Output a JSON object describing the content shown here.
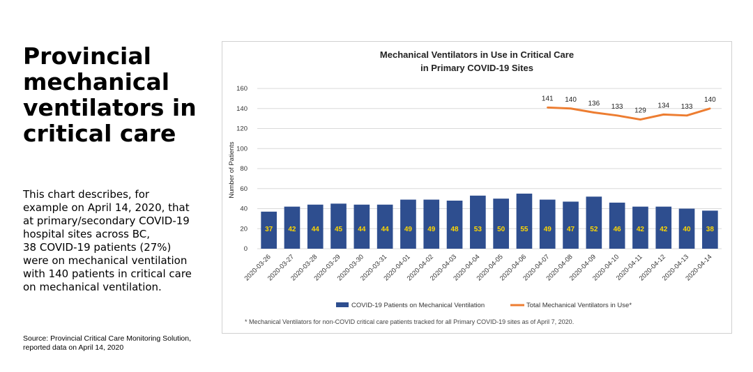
{
  "slide": {
    "title_lines": [
      "Provincial",
      "mechanical",
      "ventilators in",
      "critical care"
    ],
    "description_lines": [
      "This chart describes, for",
      "example on April 14, 2020, that",
      "at primary/secondary COVID-19",
      "hospital sites across BC,",
      "38 COVID-19 patients (27%)",
      "were on mechanical ventilation",
      "with 140 patients in critical care",
      "on mechanical ventilation."
    ],
    "source_lines": [
      "Source: Provincial Critical Care Monitoring Solution,",
      "reported data on April 14, 2020"
    ]
  },
  "colors": {
    "bar": "#2e4e8f",
    "line": "#ed7d31",
    "bar_label": "#ffd700",
    "grid": "#d9d9d9"
  },
  "chart_data": {
    "type": "bar",
    "title_lines": [
      "Mechanical Ventilators in Use in Critical Care",
      "in Primary COVID-19 Sites"
    ],
    "ylabel": "Number of Patients",
    "xlabel": "",
    "ylim": [
      0,
      160
    ],
    "yticks": [
      0,
      20,
      40,
      60,
      80,
      100,
      120,
      140,
      160
    ],
    "grid": true,
    "legend_position": "bottom",
    "categories": [
      "2020-03-26",
      "2020-03-27",
      "2020-03-28",
      "2020-03-29",
      "2020-03-30",
      "2020-03-31",
      "2020-04-01",
      "2020-04-02",
      "2020-04-03",
      "2020-04-04",
      "2020-04-05",
      "2020-04-06",
      "2020-04-07",
      "2020-04-08",
      "2020-04-09",
      "2020-04-10",
      "2020-04-11",
      "2020-04-12",
      "2020-04-13",
      "2020-04-14"
    ],
    "series": [
      {
        "name": "COVID-19 Patients on Mechanical Ventilation",
        "type": "bar",
        "values": [
          37,
          42,
          44,
          45,
          44,
          44,
          49,
          49,
          48,
          53,
          50,
          55,
          49,
          47,
          52,
          46,
          42,
          42,
          40,
          38
        ]
      },
      {
        "name": "Total Mechanical Ventilators in Use*",
        "type": "line",
        "values": [
          null,
          null,
          null,
          null,
          null,
          null,
          null,
          null,
          null,
          null,
          null,
          null,
          141,
          140,
          136,
          133,
          129,
          134,
          133,
          140
        ]
      }
    ],
    "footnote": "* Mechanical Ventilators for non-COVID critical care patients tracked for all Primary COVID-19 sites as of April 7, 2020."
  }
}
